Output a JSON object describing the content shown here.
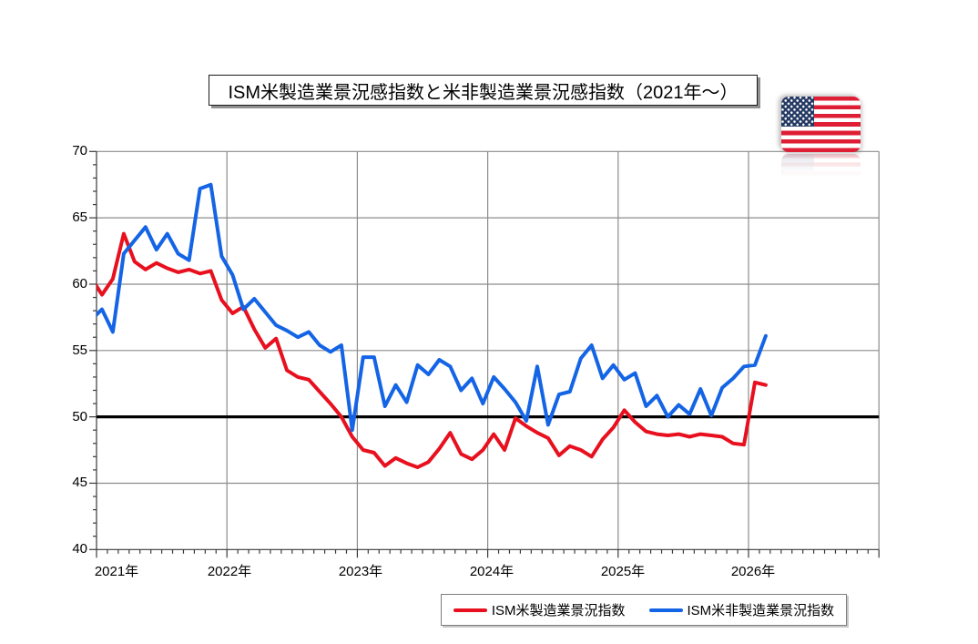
{
  "title": "ISM米製造業景況感指数と米非製造業景況感指数（2021年～）",
  "flag": {
    "name": "united-states-flag",
    "stripe_red": "#df1d34",
    "white": "#ffffff",
    "canton_blue": "#253a63"
  },
  "legend": [
    {
      "label": "ISM米製造業景況指数",
      "color": "#e8101e"
    },
    {
      "label": "ISM米非製造業景況指数",
      "color": "#1464e6"
    }
  ],
  "colors": {
    "grid": "#8c8c8c",
    "axis": "#3a3a3a",
    "reference_line": "#000000",
    "manufacturing_red": "#e8101e",
    "services_blue": "#1464e6"
  },
  "chart_data": {
    "type": "line",
    "title": "ISM米製造業景況感指数と米非製造業景況感指数（2021年～）",
    "xlabel": "",
    "ylabel": "",
    "ylim": [
      40,
      70
    ],
    "y_ticks": [
      70,
      65,
      60,
      55,
      50,
      45,
      40
    ],
    "x_tick_labels": [
      "2021年",
      "2022年",
      "2023年",
      "2024年",
      "2025年",
      "2026年"
    ],
    "grid": true,
    "legend_position": "bottom",
    "reference_line": 50,
    "months": [
      "2020/12",
      "2021/01",
      "2021/02",
      "2021/03",
      "2021/04",
      "2021/05",
      "2021/06",
      "2021/07",
      "2021/08",
      "2021/09",
      "2021/10",
      "2021/11",
      "2021/12",
      "2022/01",
      "2022/02",
      "2022/03",
      "2022/04",
      "2022/05",
      "2022/06",
      "2022/07",
      "2022/08",
      "2022/09",
      "2022/10",
      "2022/11",
      "2022/12",
      "2023/01",
      "2023/02",
      "2023/03",
      "2023/04",
      "2023/05",
      "2023/06",
      "2023/07",
      "2023/08",
      "2023/09",
      "2023/10",
      "2023/11",
      "2023/12",
      "2024/01",
      "2024/02",
      "2024/03",
      "2024/04",
      "2024/05",
      "2024/06",
      "2024/07",
      "2024/08",
      "2024/09",
      "2024/10",
      "2024/11",
      "2024/12",
      "2025/01",
      "2025/02",
      "2025/03",
      "2025/04",
      "2025/05",
      "2025/06",
      "2025/07",
      "2025/08",
      "2025/09",
      "2025/10",
      "2025/11",
      "2025/12",
      "2026/01",
      "2026/02"
    ],
    "series": [
      {
        "name": "ISM米製造業景況指数",
        "color": "#e8101e",
        "values": [
          60.5,
          59.2,
          60.4,
          63.8,
          61.7,
          61.1,
          61.6,
          61.2,
          60.9,
          61.1,
          60.8,
          61.0,
          58.8,
          57.8,
          58.3,
          56.6,
          55.2,
          55.9,
          53.5,
          53.0,
          52.8,
          51.9,
          51.0,
          50.0,
          48.5,
          47.5,
          47.3,
          46.3,
          46.9,
          46.5,
          46.2,
          46.6,
          47.6,
          48.8,
          47.2,
          46.8,
          47.5,
          48.7,
          47.5,
          49.9,
          49.3,
          48.8,
          48.4,
          47.1,
          47.8,
          47.5,
          47.0,
          48.3,
          49.2,
          50.5,
          49.6,
          48.9,
          48.7,
          48.6,
          48.7,
          48.5,
          48.7,
          48.6,
          48.5,
          48.0,
          47.9,
          52.6,
          52.4
        ]
      },
      {
        "name": "ISM米非製造業景況指数",
        "color": "#1464e6",
        "values": [
          57.3,
          58.1,
          56.4,
          62.3,
          63.3,
          64.3,
          62.6,
          63.8,
          62.3,
          61.8,
          67.2,
          67.5,
          62.1,
          60.7,
          58.1,
          58.9,
          57.9,
          56.9,
          56.5,
          56.0,
          56.4,
          55.4,
          54.9,
          55.4,
          49.0,
          54.5,
          54.5,
          50.8,
          52.4,
          51.1,
          53.9,
          53.2,
          54.3,
          53.8,
          52.0,
          52.9,
          51.0,
          53.0,
          52.1,
          51.1,
          49.7,
          53.8,
          49.4,
          51.7,
          51.9,
          54.4,
          55.4,
          52.9,
          53.9,
          52.8,
          53.3,
          50.8,
          51.6,
          50.0,
          50.9,
          50.2,
          52.1,
          50.1,
          52.2,
          52.9,
          53.8,
          53.9,
          56.1
        ]
      }
    ]
  }
}
